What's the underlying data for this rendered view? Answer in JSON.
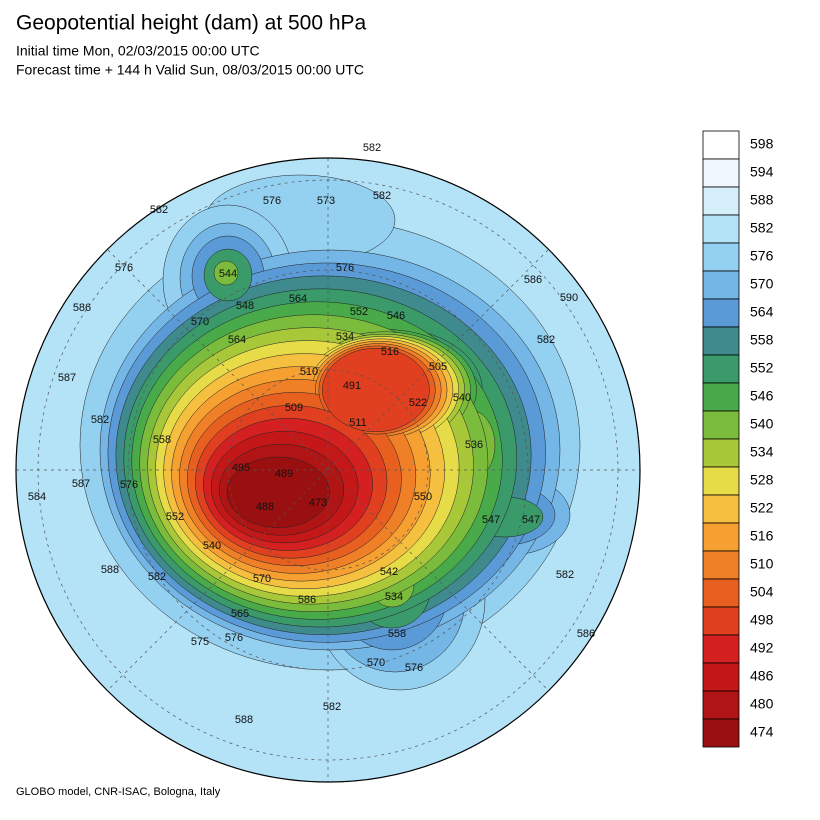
{
  "header": {
    "title": "Geopotential height (dam) at 500 hPa",
    "initial_time": "Initial time Mon, 02/03/2015 00:00 UTC",
    "forecast_time": "Forecast time + 144 h Valid Sun, 08/03/2015 00:00 UTC"
  },
  "colorbar": {
    "levels": [
      598,
      594,
      588,
      582,
      576,
      570,
      564,
      558,
      552,
      546,
      540,
      534,
      528,
      522,
      516,
      510,
      504,
      498,
      492,
      486,
      480,
      474
    ],
    "colors": [
      "#ffffff",
      "#eef8fd",
      "#d4eefa",
      "#b4e2f7",
      "#94d0f0",
      "#74b6e6",
      "#5a9ad6",
      "#3e8a8c",
      "#3a9a6a",
      "#48aa48",
      "#7cbc3c",
      "#a8c83a",
      "#e6dc48",
      "#f5c040",
      "#f5a030",
      "#f08028",
      "#e86020",
      "#e04020",
      "#d42020",
      "#c41818",
      "#b01414",
      "#9a1010"
    ]
  },
  "map": {
    "contour_labels": [
      "582",
      "576",
      "573",
      "582",
      "582",
      "544",
      "576",
      "548",
      "564",
      "576",
      "552",
      "546",
      "586",
      "570",
      "564",
      "534",
      "516",
      "505",
      "510",
      "491",
      "587",
      "509",
      "522",
      "540",
      "511",
      "582",
      "536",
      "558",
      "586",
      "590",
      "582",
      "586",
      "582",
      "547",
      "547",
      "550",
      "542",
      "534",
      "558",
      "570",
      "576",
      "582",
      "588",
      "586",
      "565",
      "575",
      "576",
      "570",
      "588",
      "582",
      "540",
      "552",
      "584",
      "587",
      "576",
      "488",
      "473",
      "489",
      "495"
    ]
  },
  "footer": "GLOBO model, CNR-ISAC, Bologna, Italy"
}
